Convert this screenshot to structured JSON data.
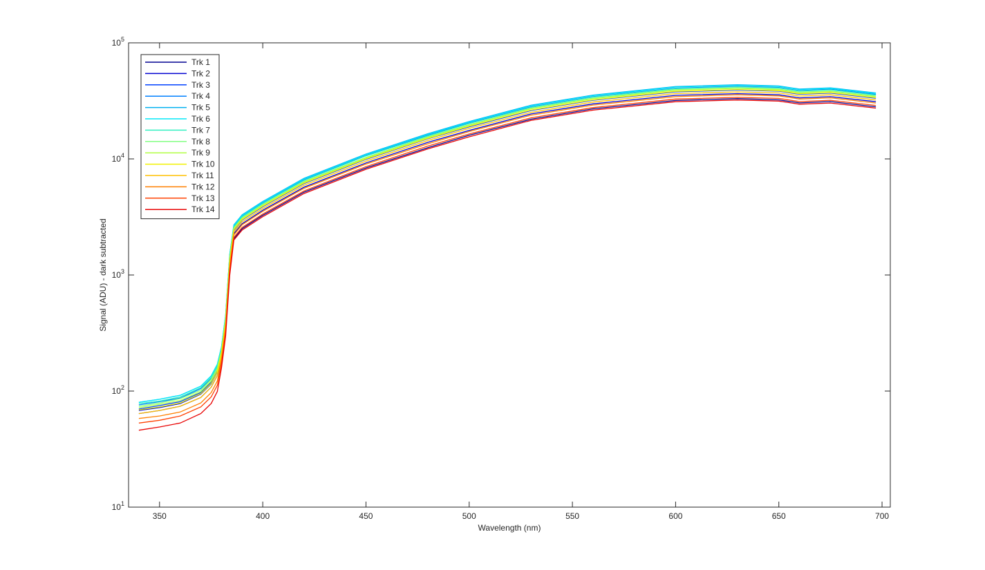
{
  "chart_data": {
    "type": "line",
    "xlabel": "Wavelength (nm)",
    "ylabel": "Signal (ADU) - dark subtracted",
    "yscale": "log",
    "legend": "upper left",
    "grid": false,
    "xlim": [
      335,
      704
    ],
    "ylim": [
      10,
      100000
    ],
    "xticks": [
      350,
      400,
      450,
      500,
      550,
      600,
      650,
      700
    ],
    "yticks": [
      {
        "value": 10,
        "label": "10",
        "exponent": "1"
      },
      {
        "value": 100,
        "label": "10",
        "exponent": "2"
      },
      {
        "value": 1000,
        "label": "10",
        "exponent": "3"
      },
      {
        "value": 10000,
        "label": "10",
        "exponent": "4"
      },
      {
        "value": 100000,
        "label": "10",
        "exponent": "5"
      }
    ],
    "x": [
      340,
      350,
      360,
      370,
      375,
      378,
      380,
      382,
      384,
      386,
      390,
      400,
      420,
      450,
      480,
      500,
      530,
      560,
      600,
      630,
      650,
      660,
      675,
      697
    ],
    "series": [
      {
        "name": "Trk 1",
        "color": "#000090",
        "values": [
          64,
          68,
          74,
          88,
          108,
          136,
          187,
          351,
          1170,
          2050,
          2510,
          3270,
          5170,
          8360,
          12500,
          16000,
          22000,
          27000,
          31900,
          33100,
          32300,
          30400,
          31200,
          28100
        ]
      },
      {
        "name": "Trk 2",
        "color": "#0000d0",
        "values": [
          68,
          72,
          78,
          94,
          115,
          145,
          203,
          380,
          1270,
          2270,
          2770,
          3610,
          5710,
          9240,
          13900,
          17600,
          24400,
          29800,
          35300,
          36500,
          35700,
          33600,
          34400,
          31100
        ]
      },
      {
        "name": "Trk 3",
        "color": "#0040ff",
        "values": [
          70,
          75,
          81,
          97,
          119,
          150,
          214,
          400,
          1340,
          2430,
          2970,
          3870,
          6120,
          9900,
          14900,
          18900,
          26100,
          32000,
          37800,
          39200,
          38300,
          36000,
          36900,
          33300
        ]
      },
      {
        "name": "Trk 4",
        "color": "#0080ff",
        "values": [
          76,
          81,
          87,
          105,
          128,
          162,
          230,
          432,
          1440,
          2620,
          3200,
          4170,
          6600,
          10700,
          16000,
          20400,
          28100,
          34400,
          40700,
          42200,
          41200,
          38800,
          39800,
          35900
        ]
      },
      {
        "name": "Trk 5",
        "color": "#00b0f0",
        "values": [
          80,
          85,
          92,
          110,
          135,
          170,
          240,
          450,
          1500,
          2700,
          3300,
          4300,
          6800,
          11000,
          16500,
          21000,
          29000,
          35500,
          42000,
          43500,
          42500,
          40000,
          41000,
          37000
        ]
      },
      {
        "name": "Trk 6",
        "color": "#00e8f8",
        "values": [
          80,
          85,
          92,
          110,
          135,
          170,
          240,
          450,
          1490,
          2670,
          3270,
          4260,
          6730,
          10900,
          16300,
          20800,
          28700,
          35100,
          41600,
          43100,
          42100,
          39600,
          40600,
          36600
        ]
      },
      {
        "name": "Trk 7",
        "color": "#30f0c0",
        "values": [
          78,
          82,
          89,
          107,
          131,
          165,
          232,
          434,
          1450,
          2590,
          3170,
          4130,
          6530,
          10600,
          15800,
          20200,
          27800,
          34100,
          40300,
          41800,
          40800,
          38400,
          39400,
          35500
        ]
      },
      {
        "name": "Trk 8",
        "color": "#80ff80",
        "values": [
          74,
          79,
          86,
          102,
          126,
          158,
          224,
          421,
          1400,
          2540,
          3100,
          4040,
          6390,
          10300,
          15500,
          19700,
          27300,
          33400,
          39500,
          40900,
          40000,
          37600,
          38500,
          34800
        ]
      },
      {
        "name": "Trk 9",
        "color": "#b0ff40",
        "values": [
          72,
          77,
          83,
          99,
          122,
          153,
          220,
          412,
          1370,
          2510,
          3070,
          4000,
          6320,
          10200,
          15300,
          19500,
          27000,
          33000,
          39100,
          40500,
          39500,
          37200,
          38100,
          34400
        ]
      },
      {
        "name": "Trk 10",
        "color": "#f0f000",
        "values": [
          69,
          73,
          79,
          95,
          116,
          146,
          212,
          398,
          1330,
          2460,
          3000,
          3910,
          6190,
          10000,
          15000,
          19100,
          26400,
          32300,
          38200,
          39600,
          38700,
          36400,
          37300,
          33700
        ]
      },
      {
        "name": "Trk 11",
        "color": "#ffc000",
        "values": [
          64,
          68,
          74,
          88,
          108,
          136,
          200,
          376,
          1250,
          2350,
          2870,
          3740,
          5920,
          9570,
          14400,
          18300,
          25200,
          30900,
          36500,
          37800,
          37000,
          34800,
          35700,
          32200
        ]
      },
      {
        "name": "Trk 12",
        "color": "#ff8000",
        "values": [
          58,
          61,
          66,
          79,
          97,
          122,
          185,
          347,
          1160,
          2210,
          2710,
          3530,
          5580,
          9020,
          13500,
          17200,
          23800,
          29100,
          34400,
          35700,
          34900,
          32800,
          33600,
          30300
        ]
      },
      {
        "name": "Trk 13",
        "color": "#ff4000",
        "values": [
          53,
          56,
          61,
          73,
          89,
          112,
          173,
          324,
          1080,
          2110,
          2570,
          3350,
          5300,
          8580,
          12900,
          16400,
          22600,
          27700,
          32800,
          33900,
          33200,
          31200,
          32000,
          28900
        ]
      },
      {
        "name": "Trk 14",
        "color": "#e80000",
        "values": [
          46,
          49,
          53,
          64,
          78,
          99,
          158,
          297,
          990,
          2000,
          2440,
          3180,
          5030,
          8140,
          12200,
          15500,
          21500,
          26300,
          31100,
          32200,
          31500,
          29600,
          30300,
          27400
        ]
      }
    ]
  }
}
